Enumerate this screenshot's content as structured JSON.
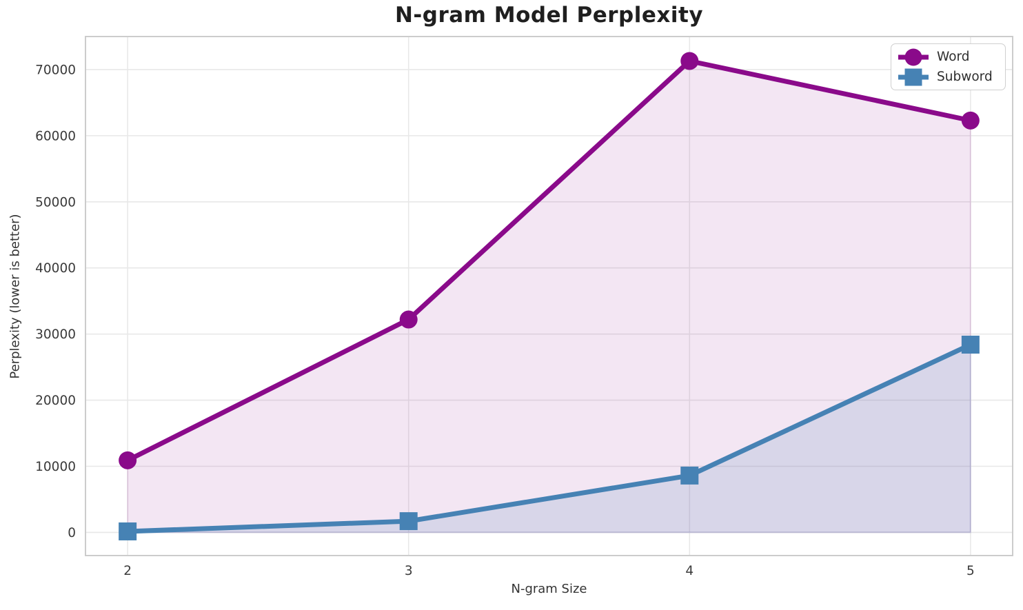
{
  "chart_data": {
    "type": "line",
    "title": "N-gram Model Perplexity",
    "xlabel": "N-gram Size",
    "ylabel": "Perplexity (lower is better)",
    "x": [
      2,
      3,
      4,
      5
    ],
    "series": [
      {
        "name": "Word",
        "values": [
          10900,
          32200,
          71300,
          62300
        ],
        "color": "#8a0a8a",
        "marker": "circle",
        "fill_alpha": 0.1
      },
      {
        "name": "Subword",
        "values": [
          150,
          1700,
          8600,
          28400
        ],
        "color": "#4682b4",
        "marker": "square",
        "fill_alpha": 0.15
      }
    ],
    "fill_to_zero": true,
    "xlim": [
      1.85,
      5.15
    ],
    "ylim": [
      -3500,
      75000
    ],
    "xticks": [
      2,
      3,
      4,
      5
    ],
    "yticks": [
      0,
      10000,
      20000,
      30000,
      40000,
      50000,
      60000,
      70000
    ],
    "grid": true,
    "legend": {
      "position": "upper right"
    },
    "style": {
      "grid_color": "#e8e8e8",
      "spine_color": "#cccccc",
      "tick_color": "#3a3a3a"
    }
  }
}
